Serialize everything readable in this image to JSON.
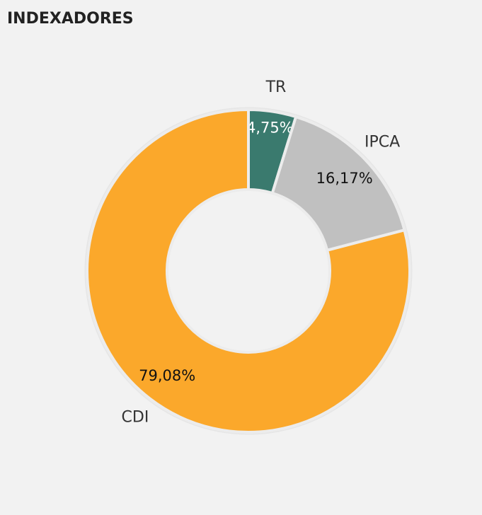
{
  "chart_data": {
    "type": "donut",
    "title": "INDEXADORES",
    "categories": [
      "TR",
      "IPCA",
      "CDI"
    ],
    "values": [
      4.75,
      16.17,
      79.08
    ],
    "value_labels": [
      "4,75%",
      "16,17%",
      "79,08%"
    ],
    "colors": [
      "#3a7a6e",
      "#c0c0c0",
      "#fba82b"
    ]
  }
}
